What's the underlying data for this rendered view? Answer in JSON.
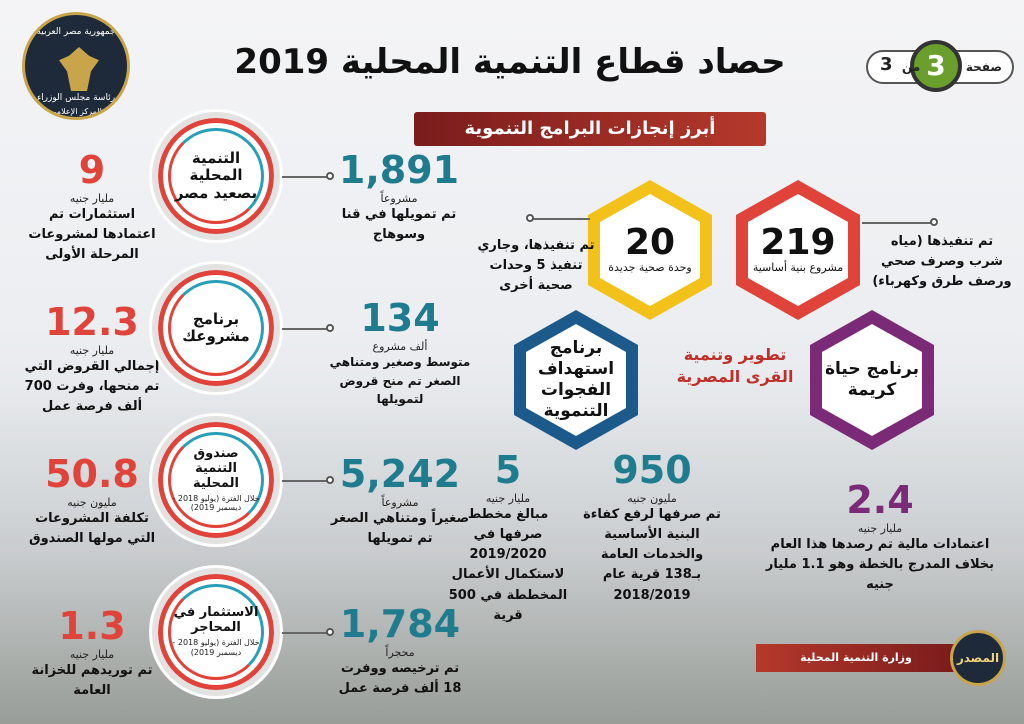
{
  "header": {
    "title": "حصاد قطاع التنمية المحلية 2019",
    "subtitle": "أبرز إنجازات البرامج التنموية",
    "page_label": "صفحة",
    "page_num": "3",
    "of_label": "من",
    "page_total": "3"
  },
  "logo": {
    "line1": "جمهورية مصر العربية",
    "line2": "رئاسة مجلس الوزراء",
    "line3": "المركز الإعلامي"
  },
  "left": [
    {
      "value": "9",
      "unit": "مليار جنيه",
      "desc": "استثمارات تم اعتمادها لمشروعات المرحلة الأولى"
    },
    {
      "value": "12.3",
      "unit": "مليار جنيه",
      "desc": "إجمالي القروض التي تم منحها، وفرت 700 ألف فرصة عمل"
    },
    {
      "value": "50.8",
      "unit": "مليون جنيه",
      "desc": "تكلفة المشروعات التي مولها الصندوق"
    },
    {
      "value": "1.3",
      "unit": "مليار جنيه",
      "desc": "تم توريدهم للخزانة العامة"
    }
  ],
  "rings": [
    {
      "title": "التنمية المحلية بصعيد مصر",
      "sub": ""
    },
    {
      "title": "برنامج مشروعك",
      "sub": ""
    },
    {
      "title": "صندوق التنمية المحلية",
      "sub": "خلال الفترة (يوليو 2018 - ديسمبر 2019)"
    },
    {
      "title": "الاستثمار في المحاجر",
      "sub": "خلال الفترة (يوليو 2018 - ديسمبر 2019)"
    }
  ],
  "middle": [
    {
      "value": "1,891",
      "unit": "مشروعاً",
      "desc": "تم تمويلها في قنا وسوهاج"
    },
    {
      "value": "134",
      "unit": "ألف مشروع",
      "desc": "متوسط وصغير ومتناهي الصغر تم منح قروض لتمويلها"
    },
    {
      "value": "5,242",
      "unit": "مشروعاً",
      "desc": "صغيراً ومتناهي الصغر تم تمويلها"
    },
    {
      "value": "1,784",
      "unit": "محجراً",
      "desc": "تم ترخيصه ووفرت 18 ألف فرصة عمل"
    }
  ],
  "hexes": {
    "red": {
      "value": "219",
      "text": "مشروع بنية أساسية"
    },
    "yellow": {
      "value": "20",
      "text": "وحدة صحية جديدة"
    },
    "blue": {
      "name": "برنامج استهداف الفجوات التنموية"
    },
    "purple": {
      "name": "برنامج حياة كريمة"
    },
    "center": "تطوير وتنمية القرى المصرية"
  },
  "callouts": {
    "red_desc": "تم تنفيذها (مياه شرب وصرف صحي ورصف طرق وكهرباء)",
    "yellow_desc": "تم تنفيذها، وجاري تنفيذ 5 وحدات صحية أخرى"
  },
  "bottom": {
    "v1": {
      "value": "5",
      "unit": "مليار جنيه",
      "desc": "مبالغ مخطط صرفها في 2019/2020 لاستكمال الأعمال المخططة في 500 قرية"
    },
    "v2": {
      "value": "950",
      "unit": "مليون جنيه",
      "desc": "تم صرفها لرفع كفاءة البنية الأساسية والخدمات العامة بـ138 قرية عام 2018/2019"
    },
    "v3": {
      "value": "2.4",
      "unit": "مليار جنيه",
      "desc": "اعتمادات مالية تم رصدها هذا العام بخلاف المدرج بالخطة وهو 1.1 مليار جنيه"
    }
  },
  "source": {
    "label": "المصدر",
    "value": "وزارة التنمية المحلية"
  },
  "colors": {
    "red": "#e0433a",
    "yellow": "#f2c21b",
    "blue": "#1d5a8c",
    "purple": "#7b2a77",
    "teal": "#1f7c8e"
  }
}
